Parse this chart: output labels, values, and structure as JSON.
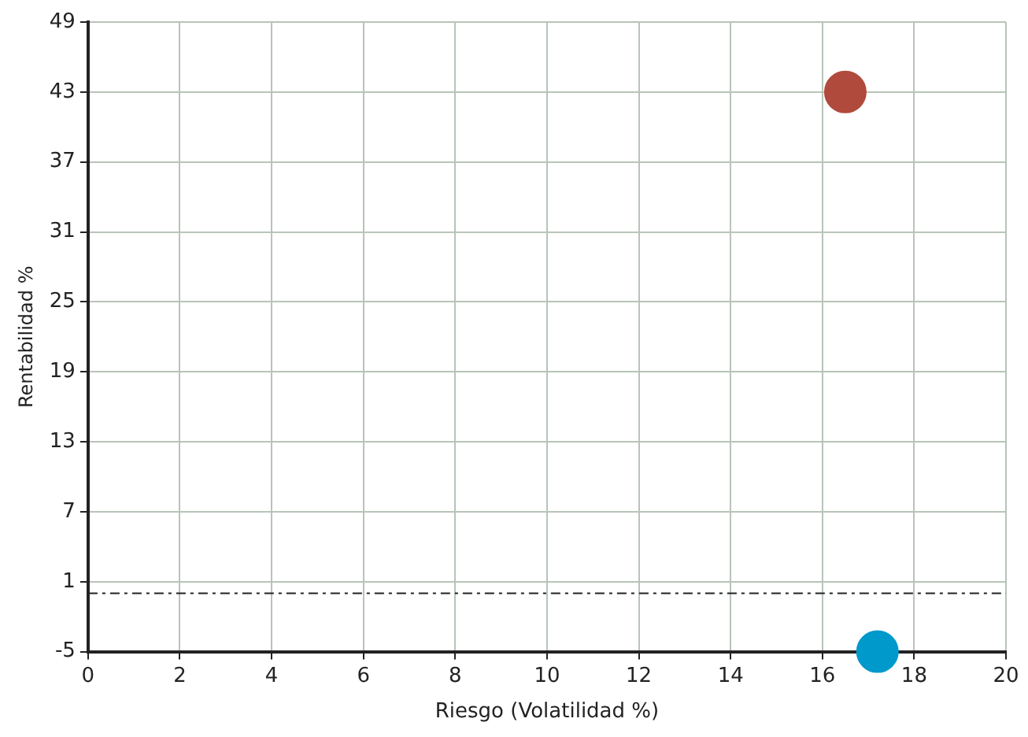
{
  "chart_data": {
    "type": "scatter",
    "xlabel": "Riesgo (Volatilidad %)",
    "ylabel": "Rentabilidad %",
    "series": [
      {
        "color": "#b04a3c",
        "x": [
          16.5
        ],
        "values": [
          43
        ]
      },
      {
        "color": "#0099cc",
        "x": [
          17.2
        ],
        "values": [
          -5
        ]
      }
    ],
    "xlim": [
      0,
      20
    ],
    "xticks": [
      0,
      2,
      4,
      6,
      8,
      10,
      12,
      14,
      16,
      18,
      20
    ],
    "ylim": [
      -5,
      49
    ],
    "yticks": [
      -5,
      1,
      7,
      13,
      19,
      25,
      31,
      37,
      43,
      49
    ],
    "ref_lines": [
      {
        "axis": "y",
        "value": 0,
        "color": "#222222",
        "line_style": "dashdot"
      }
    ],
    "grid": true,
    "legend": false,
    "marker": "circle"
  }
}
